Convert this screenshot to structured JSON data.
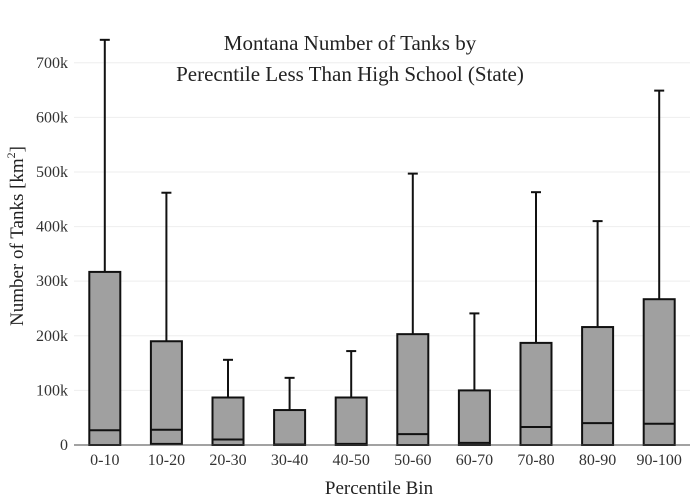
{
  "chart_data": {
    "type": "box",
    "title_lines": [
      "Montana Number of Tanks by",
      "Perecntile Less Than High School (State)"
    ],
    "xlabel": "Percentile Bin",
    "ylabel": "Number of Tanks  [km",
    "ylabel_sup": "2",
    "ylabel_close": "]",
    "ylim": [
      0,
      760000
    ],
    "yticks": [
      0,
      100000,
      200000,
      300000,
      400000,
      500000,
      600000,
      700000
    ],
    "ytick_labels": [
      "0",
      "100k",
      "200k",
      "300k",
      "400k",
      "500k",
      "600k",
      "700k"
    ],
    "grid": true,
    "box_color": "#a0a0a0",
    "categories": [
      "0-10",
      "10-20",
      "20-30",
      "30-40",
      "40-50",
      "50-60",
      "60-70",
      "70-80",
      "80-90",
      "90-100"
    ],
    "boxes": [
      {
        "min": 0,
        "q1": 0,
        "median": 27000,
        "q3": 317000,
        "max": 742000
      },
      {
        "min": 0,
        "q1": 2000,
        "median": 28000,
        "q3": 190000,
        "max": 462000
      },
      {
        "min": 0,
        "q1": 0,
        "median": 10000,
        "q3": 87000,
        "max": 156000
      },
      {
        "min": 0,
        "q1": 0,
        "median": 1000,
        "q3": 64000,
        "max": 123000
      },
      {
        "min": 0,
        "q1": 0,
        "median": 2000,
        "q3": 87000,
        "max": 172000
      },
      {
        "min": 0,
        "q1": 0,
        "median": 20000,
        "q3": 203000,
        "max": 497000
      },
      {
        "min": 0,
        "q1": 0,
        "median": 4000,
        "q3": 100000,
        "max": 241000
      },
      {
        "min": 0,
        "q1": 0,
        "median": 33000,
        "q3": 187000,
        "max": 463000
      },
      {
        "min": 0,
        "q1": 0,
        "median": 40000,
        "q3": 216000,
        "max": 410000
      },
      {
        "min": 0,
        "q1": 0,
        "median": 39000,
        "q3": 267000,
        "max": 649000
      }
    ]
  }
}
